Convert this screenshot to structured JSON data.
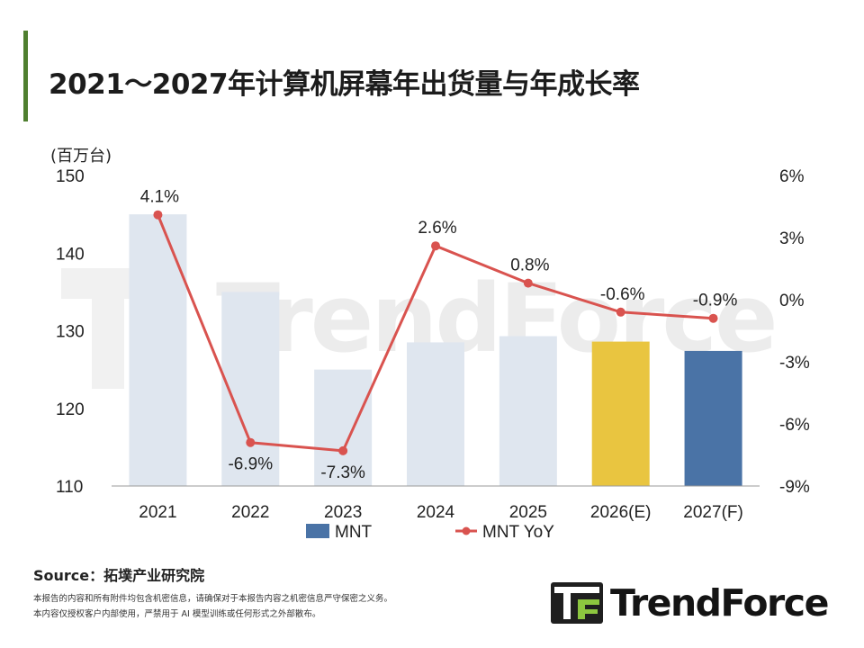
{
  "title": "2021～2027年计算机屏幕年出货量与年成长率",
  "unit_label": "(百万台)",
  "source": "Source：拓墣产业研究院",
  "disclaimer_lines": [
    "本报告的内容和所有附件均包含机密信息，请确保对于本报告内容之机密信息严守保密之义务。",
    "本内容仅授权客户内部使用，严禁用于 AI 模型训练或任何形式之外部散布。"
  ],
  "brand": {
    "name": "TrendForce",
    "watermark": "TrendForce",
    "accent_color": "#4f7f2f"
  },
  "chart_data": {
    "type": "bar+line",
    "categories": [
      "2021",
      "2022",
      "2023",
      "2024",
      "2025",
      "2026(E)",
      "2027(F)"
    ],
    "series": [
      {
        "name": "MNT",
        "axis": "left",
        "type": "bar",
        "values": [
          145,
          135,
          125,
          128.5,
          129.3,
          128.6,
          127.4
        ]
      },
      {
        "name": "MNT YoY",
        "axis": "right",
        "type": "line",
        "values": [
          4.1,
          -6.9,
          -7.3,
          2.6,
          0.8,
          -0.6,
          -0.9
        ],
        "labels": [
          "4.1%",
          "-6.9%",
          "-7.3%",
          "2.6%",
          "0.8%",
          "-0.6%",
          "-0.9%"
        ]
      }
    ],
    "y_left": {
      "min": 110,
      "max": 150,
      "ticks": [
        "110",
        "120",
        "130",
        "140",
        "150"
      ]
    },
    "y_right": {
      "min": -9,
      "max": 6,
      "ticks": [
        "-9%",
        "-6%",
        "-3%",
        "0%",
        "3%",
        "6%"
      ]
    },
    "bar_colors": [
      "#dfe6ef",
      "#dfe6ef",
      "#dfe6ef",
      "#dfe6ef",
      "#dfe6ef",
      "#e9c540",
      "#4a73a6"
    ],
    "line_color": "#d9534f",
    "legend": {
      "position": "bottom",
      "items": [
        "MNT",
        "MNT YoY"
      ],
      "mnt_color": "#4a73a6",
      "yoy_color": "#d9534f"
    }
  }
}
